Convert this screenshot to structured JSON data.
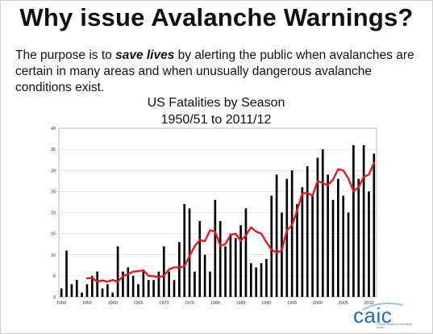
{
  "slide": {
    "title": "Why issue Avalanche Warnings?",
    "intro_pre": "The purpose is to ",
    "intro_em": "save lives",
    "intro_post": " by alerting the public when avalanches are certain in many areas and when unusually dangerous avalanche conditions exist."
  },
  "logo": {
    "name": "caic",
    "subtitle": "Colorado Avalanche Information Center"
  },
  "colors": {
    "bar": "#000000",
    "trend_line": "#e31b23",
    "grid": "#cfcfcf",
    "logo": "#1f6fb3"
  },
  "chart_data": {
    "type": "bar",
    "title": "US Fatalities by Season",
    "subtitle": "1950/51 to 2011/12",
    "xlabel": "",
    "ylabel": "",
    "ylim": [
      0,
      40
    ],
    "y_ticks": [
      "0",
      "5",
      "10",
      "15",
      "20",
      "25",
      "30",
      "35",
      "40"
    ],
    "x_tick_labels": [
      "1950",
      "1955",
      "1960",
      "1965",
      "1970",
      "1975",
      "1980",
      "1985",
      "1990",
      "1995",
      "2000",
      "2005",
      "2010"
    ],
    "grid": true,
    "legend": "none",
    "categories": [
      1950,
      1951,
      1952,
      1953,
      1954,
      1955,
      1956,
      1957,
      1958,
      1959,
      1960,
      1961,
      1962,
      1963,
      1964,
      1965,
      1966,
      1967,
      1968,
      1969,
      1970,
      1971,
      1972,
      1973,
      1974,
      1975,
      1976,
      1977,
      1978,
      1979,
      1980,
      1981,
      1982,
      1983,
      1984,
      1985,
      1986,
      1987,
      1988,
      1989,
      1990,
      1991,
      1992,
      1993,
      1994,
      1995,
      1996,
      1997,
      1998,
      1999,
      2000,
      2001,
      2002,
      2003,
      2004,
      2005,
      2006,
      2007,
      2008,
      2009,
      2010,
      2011
    ],
    "series": [
      {
        "type": "bar",
        "values": [
          2,
          11,
          3,
          4,
          1,
          3,
          5,
          6,
          2,
          3,
          1,
          12,
          6,
          7,
          5,
          3,
          6,
          4,
          4,
          6,
          12,
          6,
          4,
          13,
          22,
          21,
          6,
          18,
          10,
          6,
          23,
          18,
          12,
          15,
          14,
          17,
          21,
          8,
          7,
          8,
          9,
          24,
          29,
          20,
          28,
          30,
          22,
          26,
          31,
          24,
          33,
          35,
          29,
          23,
          28,
          24,
          20,
          36,
          28,
          36,
          25,
          34
        ]
      },
      {
        "type": "line",
        "color": "#e31b23",
        "x": [
          1955,
          1956,
          1957,
          1958,
          1959,
          1960,
          1961,
          1962,
          1963,
          1964,
          1965,
          1966,
          1967,
          1968,
          1969,
          1970,
          1971,
          1972,
          1973,
          1974,
          1975,
          1976,
          1977,
          1978,
          1979,
          1980,
          1981,
          1982,
          1983,
          1984,
          1985,
          1986,
          1987,
          1988,
          1989,
          1990,
          1991,
          1992,
          1993,
          1994,
          1995,
          1996,
          1997,
          1998,
          1999,
          2000,
          2001,
          2002,
          2003,
          2004,
          2005,
          2006,
          2007,
          2008,
          2009,
          2010,
          2011
        ],
        "values": [
          4.4,
          4.5,
          3.6,
          3.9,
          3.6,
          4.0,
          3.6,
          4.9,
          5.4,
          6.0,
          6.1,
          6.3,
          5.0,
          4.9,
          4.7,
          5.0,
          6.5,
          7.0,
          7.0,
          7.2,
          9.7,
          12.0,
          13.5,
          13.2,
          15.8,
          15.5,
          12.1,
          12.5,
          14.7,
          15.0,
          13.3,
          14.6,
          16.5,
          15.5,
          15.0,
          13.0,
          11.2,
          10.5,
          11.0,
          15.8,
          17.0,
          20.5,
          24.5,
          24.7,
          24.0,
          27.5,
          27.0,
          26.5,
          27.8,
          30.3,
          30.0,
          28.1,
          25.1,
          26.0,
          28.5,
          29.0,
          31.8
        ]
      }
    ]
  }
}
